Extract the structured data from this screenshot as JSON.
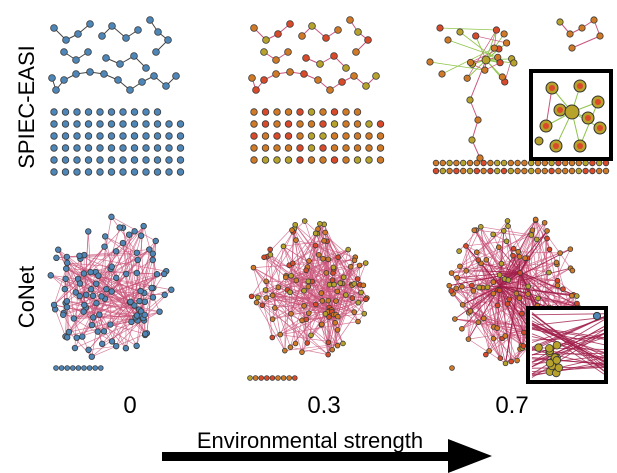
{
  "rows": [
    {
      "id": "spiec",
      "label": "SPIEC-EASI"
    },
    {
      "id": "conet",
      "label": "CoNet"
    }
  ],
  "columns": [
    {
      "value": "0"
    },
    {
      "value": "0.3"
    },
    {
      "value": "0.7"
    }
  ],
  "axis_label": "Environmental strength",
  "colors": {
    "node_blue": "#4f86b8",
    "node_red": "#d94a2b",
    "node_orange": "#d07a28",
    "node_olive": "#b7a22c",
    "node_stroke": "#3a3a3a",
    "edge_pink": "#c9547a",
    "edge_green": "#8fc44a",
    "arrow": "#000000"
  }
}
